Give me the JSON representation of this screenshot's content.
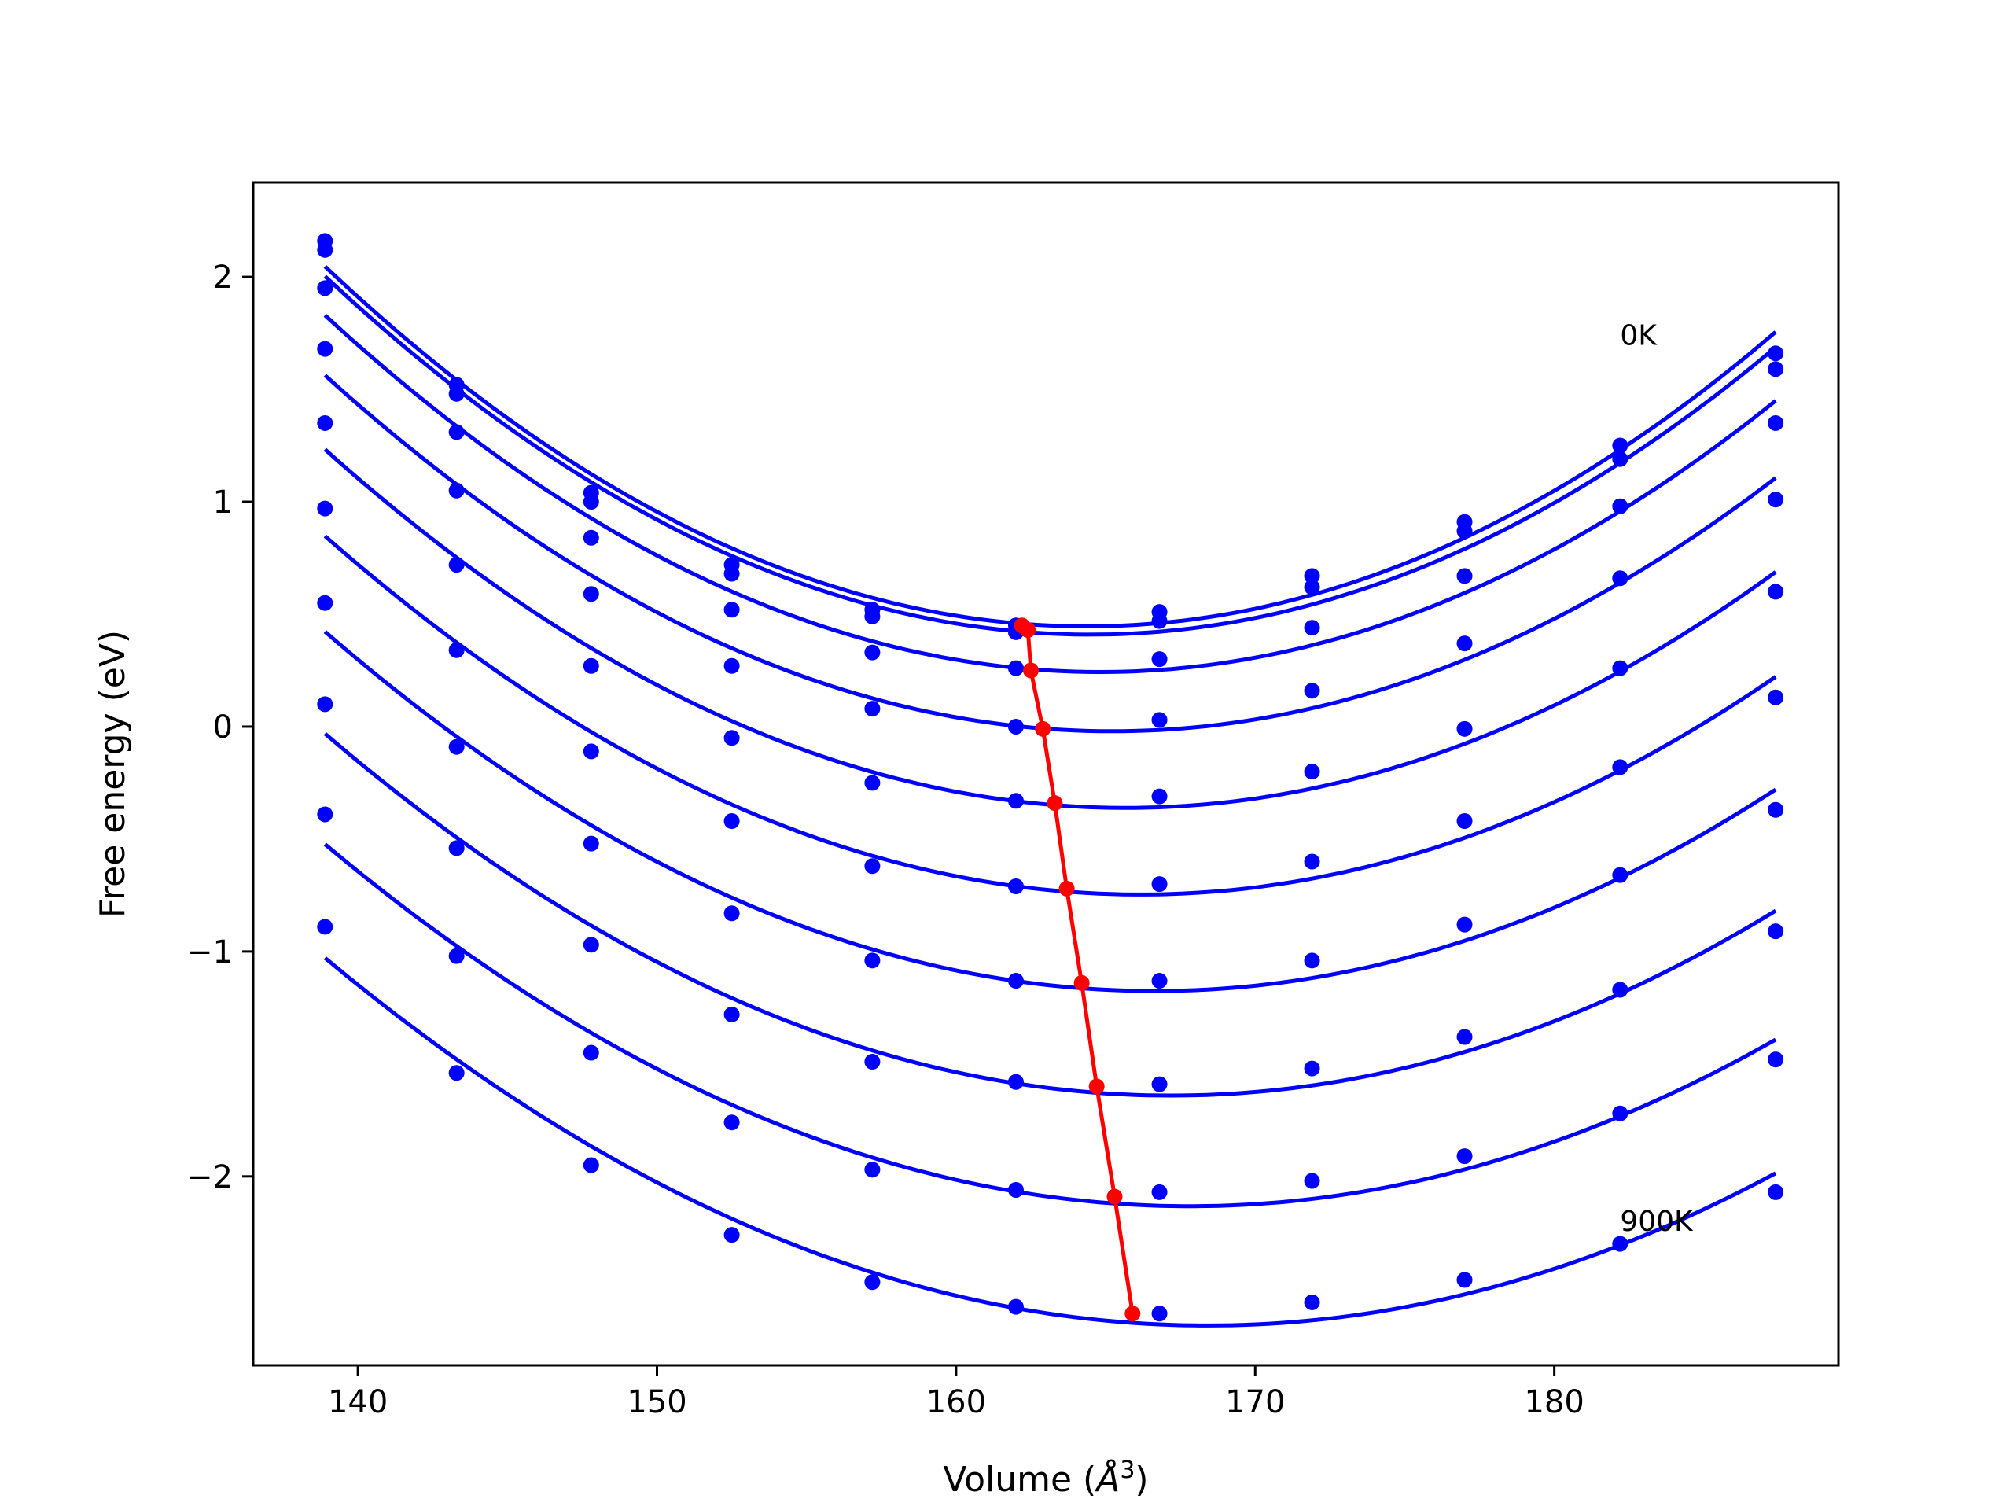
{
  "chart_data": {
    "type": "line",
    "title": "",
    "xlabel": "Volume (",
    "xlabel_unit": "Å",
    "xlabel_exp": "3",
    "xlabel_close": ")",
    "ylabel": "Free energy (eV)",
    "xlim": [
      136.5,
      189.5
    ],
    "ylim": [
      -2.84,
      2.42
    ],
    "xticks": [
      140,
      150,
      160,
      170,
      180
    ],
    "xtick_labels": [
      "140",
      "150",
      "160",
      "170",
      "180"
    ],
    "yticks": [
      -2,
      -1,
      0,
      1,
      2
    ],
    "ytick_labels": [
      "−2",
      "−1",
      "0",
      "1",
      "2"
    ],
    "grid": false,
    "colors": {
      "series": "#0000ff",
      "minimum": "#ff0000"
    },
    "annotations": [
      {
        "text": "0K",
        "x": 182.2,
        "y": 1.74
      },
      {
        "text": "900K",
        "x": 182.2,
        "y": -2.2
      }
    ],
    "x": [
      138.9,
      143.3,
      147.8,
      152.5,
      157.2,
      162.0,
      166.8,
      171.9,
      177.0,
      182.2,
      187.4
    ],
    "series": [
      {
        "values": [
          2.16,
          1.52,
          1.04,
          0.72,
          0.52,
          0.45,
          0.51,
          0.67,
          0.91,
          1.25,
          1.66
        ]
      },
      {
        "values": [
          2.12,
          1.48,
          1.0,
          0.68,
          0.49,
          0.42,
          0.47,
          0.62,
          0.87,
          1.19,
          1.59
        ]
      },
      {
        "values": [
          1.95,
          1.31,
          0.84,
          0.52,
          0.33,
          0.26,
          0.3,
          0.44,
          0.67,
          0.98,
          1.35
        ]
      },
      {
        "values": [
          1.68,
          1.05,
          0.59,
          0.27,
          0.08,
          0.0,
          0.03,
          0.16,
          0.37,
          0.66,
          1.01
        ]
      },
      {
        "values": [
          1.35,
          0.72,
          0.27,
          -0.05,
          -0.25,
          -0.33,
          -0.31,
          -0.2,
          -0.01,
          0.26,
          0.6
        ]
      },
      {
        "values": [
          0.97,
          0.34,
          -0.11,
          -0.42,
          -0.62,
          -0.71,
          -0.7,
          -0.6,
          -0.42,
          -0.18,
          0.13
        ]
      },
      {
        "values": [
          0.55,
          -0.09,
          -0.52,
          -0.83,
          -1.04,
          -1.13,
          -1.13,
          -1.04,
          -0.88,
          -0.66,
          -0.37
        ]
      },
      {
        "values": [
          0.1,
          -0.54,
          -0.97,
          -1.28,
          -1.49,
          -1.58,
          -1.59,
          -1.52,
          -1.38,
          -1.17,
          -0.91
        ]
      },
      {
        "values": [
          -0.39,
          -1.02,
          -1.45,
          -1.76,
          -1.97,
          -2.06,
          -2.07,
          -2.02,
          -1.91,
          -1.72,
          -1.48
        ]
      },
      {
        "values": [
          -0.89,
          -1.54,
          -1.95,
          -2.26,
          -2.47,
          -2.58,
          -2.61,
          -2.56,
          -2.46,
          -2.3,
          -2.07
        ]
      }
    ],
    "minimum_curve": {
      "x": [
        162.2,
        162.4,
        162.5,
        162.9,
        163.3,
        163.7,
        164.2,
        164.7,
        165.3,
        165.9
      ],
      "y": [
        0.45,
        0.43,
        0.25,
        -0.01,
        -0.34,
        -0.72,
        -1.14,
        -1.6,
        -2.09,
        -2.61
      ]
    }
  }
}
